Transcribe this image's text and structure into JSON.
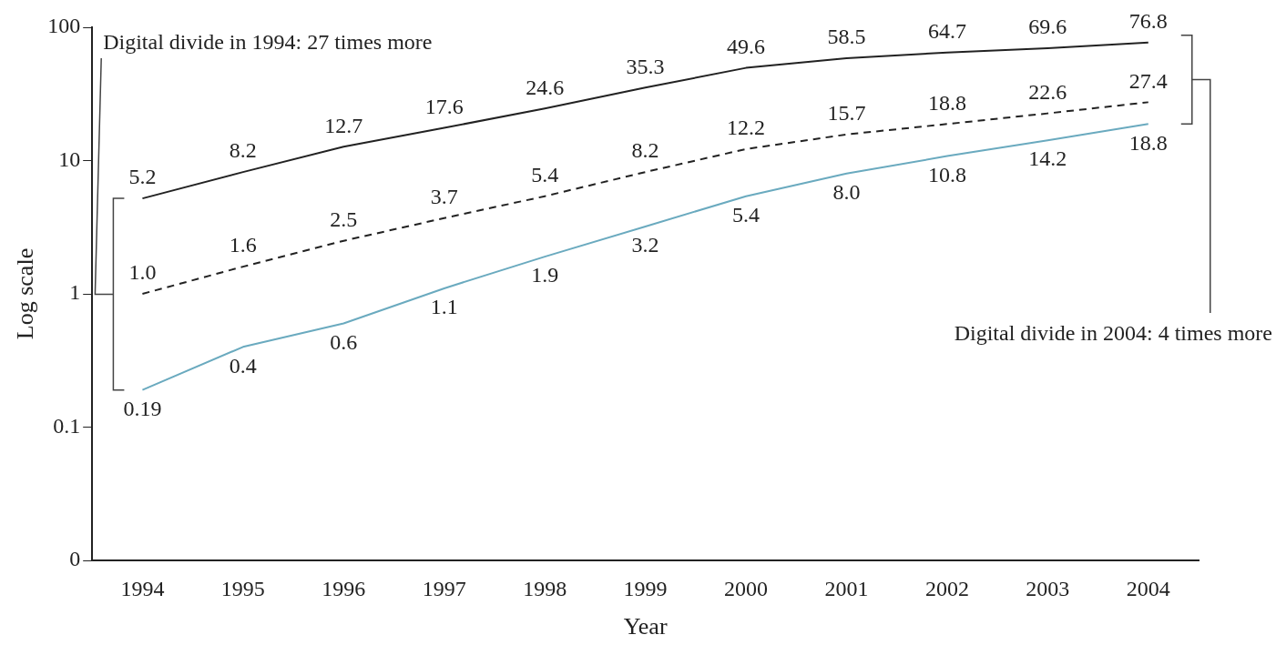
{
  "chart_data": {
    "type": "line",
    "xlabel": "Year",
    "ylabel": "Log scale",
    "log": "y",
    "grid": false,
    "legend": false,
    "marker": "none",
    "categories": [
      "1994",
      "1995",
      "1996",
      "1997",
      "1998",
      "1999",
      "2000",
      "2001",
      "2002",
      "2003",
      "2004"
    ],
    "ylim": [
      0.01,
      100
    ],
    "yticks": [
      {
        "value": 0.01,
        "label": "0"
      },
      0.1,
      1,
      10,
      100
    ],
    "series": [
      {
        "color": "#222222",
        "line_style": "solid",
        "values": [
          5.2,
          8.2,
          12.7,
          17.6,
          24.6,
          35.3,
          49.6,
          58.5,
          64.7,
          69.6,
          76.8
        ],
        "value_labels": [
          "5.2",
          "8.2",
          "12.7",
          "17.6",
          "24.6",
          "35.3",
          "49.6",
          "58.5",
          "64.7",
          "69.6",
          "76.8"
        ]
      },
      {
        "color": "#222222",
        "line_style": "dashed",
        "values": [
          1.0,
          1.6,
          2.5,
          3.7,
          5.4,
          8.2,
          12.2,
          15.7,
          18.8,
          22.6,
          27.4
        ],
        "value_labels": [
          "1.0",
          "1.6",
          "2.5",
          "3.7",
          "5.4",
          "8.2",
          "12.2",
          "15.7",
          "18.8",
          "22.6",
          "27.4"
        ]
      },
      {
        "color": "#6aaabf",
        "line_style": "solid",
        "values": [
          0.19,
          0.4,
          0.6,
          1.1,
          1.9,
          3.2,
          5.4,
          8.0,
          10.8,
          14.2,
          18.8
        ],
        "value_labels": [
          "0.19",
          "0.4",
          "0.6",
          "1.1",
          "1.9",
          "3.2",
          "5.4",
          "8.0",
          "10.8",
          "14.2",
          "18.8"
        ]
      }
    ],
    "annotations": [
      "Digital divide in 1994: 27 times more",
      "Digital divide in 2004: 4 times more"
    ]
  }
}
